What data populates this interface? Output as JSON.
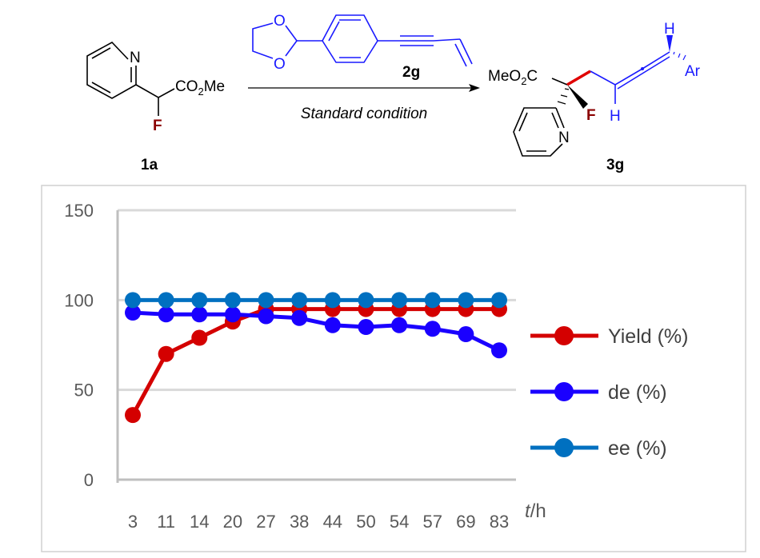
{
  "scheme": {
    "reactant": {
      "id": "1a",
      "group": "CO2Me",
      "fluorine": "F",
      "ring_atom": "N"
    },
    "reagent": {
      "id": "2g",
      "atoms": [
        "O",
        "O"
      ]
    },
    "condition": "Standard condition",
    "product": {
      "id": "3g",
      "group": "MeO2C",
      "fluorine": "F",
      "ring_atom": "N",
      "h1": "H",
      "h2": "H",
      "aryl": "Ar"
    },
    "colors": {
      "reagent": "#1a1aff",
      "fluorine": "#8b0000",
      "new_bond": "#e00000"
    }
  },
  "chart_data": {
    "type": "line",
    "categories": [
      "3",
      "11",
      "14",
      "20",
      "27",
      "38",
      "44",
      "50",
      "54",
      "57",
      "69",
      "83"
    ],
    "xlabel_italic": "t",
    "xlabel_unit": "/h",
    "ylim": [
      0,
      150
    ],
    "yticks": [
      "0",
      "50",
      "100",
      "150"
    ],
    "grid": true,
    "legend_position": "right",
    "series": [
      {
        "name": "Yield (%)",
        "color": "#d40000",
        "values": [
          36,
          70,
          79,
          88,
          95,
          95,
          95,
          95,
          95,
          95,
          95,
          95
        ]
      },
      {
        "name": "de (%)",
        "color": "#1a00ff",
        "values": [
          93,
          92,
          92,
          92,
          91,
          90,
          86,
          85,
          86,
          84,
          81,
          72
        ]
      },
      {
        "name": "ee (%)",
        "color": "#0070c0",
        "values": [
          100,
          100,
          100,
          100,
          100,
          100,
          100,
          100,
          100,
          100,
          100,
          100
        ]
      }
    ]
  }
}
